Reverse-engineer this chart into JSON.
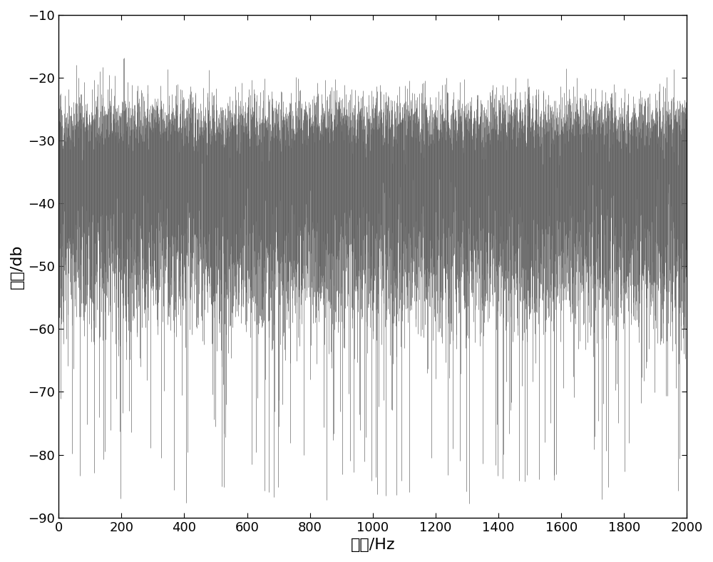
{
  "title": "",
  "xlabel": "频率/Hz",
  "ylabel": "幅度/db",
  "xlim": [
    0,
    2000
  ],
  "ylim": [
    -90,
    -10
  ],
  "xticks": [
    0,
    200,
    400,
    600,
    800,
    1000,
    1200,
    1400,
    1600,
    1800,
    2000
  ],
  "yticks": [
    -90,
    -80,
    -70,
    -60,
    -50,
    -40,
    -30,
    -20,
    -10
  ],
  "line_color": "#595959",
  "background_color": "#ffffff",
  "n_lines": 2000,
  "seed": 42,
  "upper_mean": -26.5,
  "upper_std": 2.5,
  "lower_mean": -52,
  "lower_std": 6,
  "deep_spike_prob": 0.06,
  "deep_spike_min": -88,
  "deep_spike_max": -68,
  "high_peak_prob_low_freq": 0.015,
  "high_peak_min": -22,
  "high_peak_max": -14,
  "low_freq_threshold": 350,
  "line_width": 0.45,
  "tick_labelsize": 13,
  "label_fontsize": 16
}
